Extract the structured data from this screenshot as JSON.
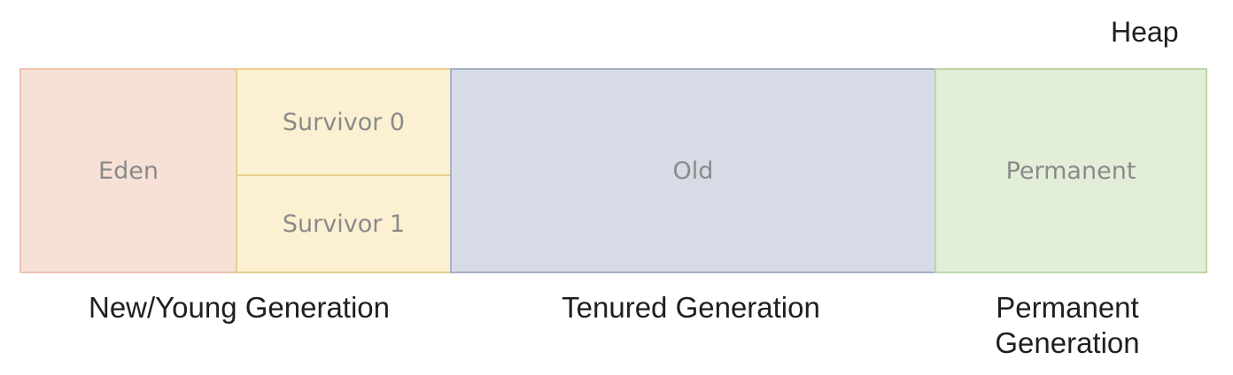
{
  "heap": {
    "label": "Heap"
  },
  "regions": {
    "eden": "Eden",
    "survivor0": "Survivor 0",
    "survivor1": "Survivor 1",
    "old": "Old",
    "permanent": "Permanent"
  },
  "generations": {
    "young": "New/Young Generation",
    "tenured": "Tenured Generation",
    "permanent_line1": "Permanent",
    "permanent_line2": "Generation"
  },
  "colors": {
    "eden_fill": "#f7e1d6",
    "survivor_fill": "#fcf0d2",
    "old_fill": "#d6dbe5",
    "permanent_fill": "#e3eed8"
  }
}
